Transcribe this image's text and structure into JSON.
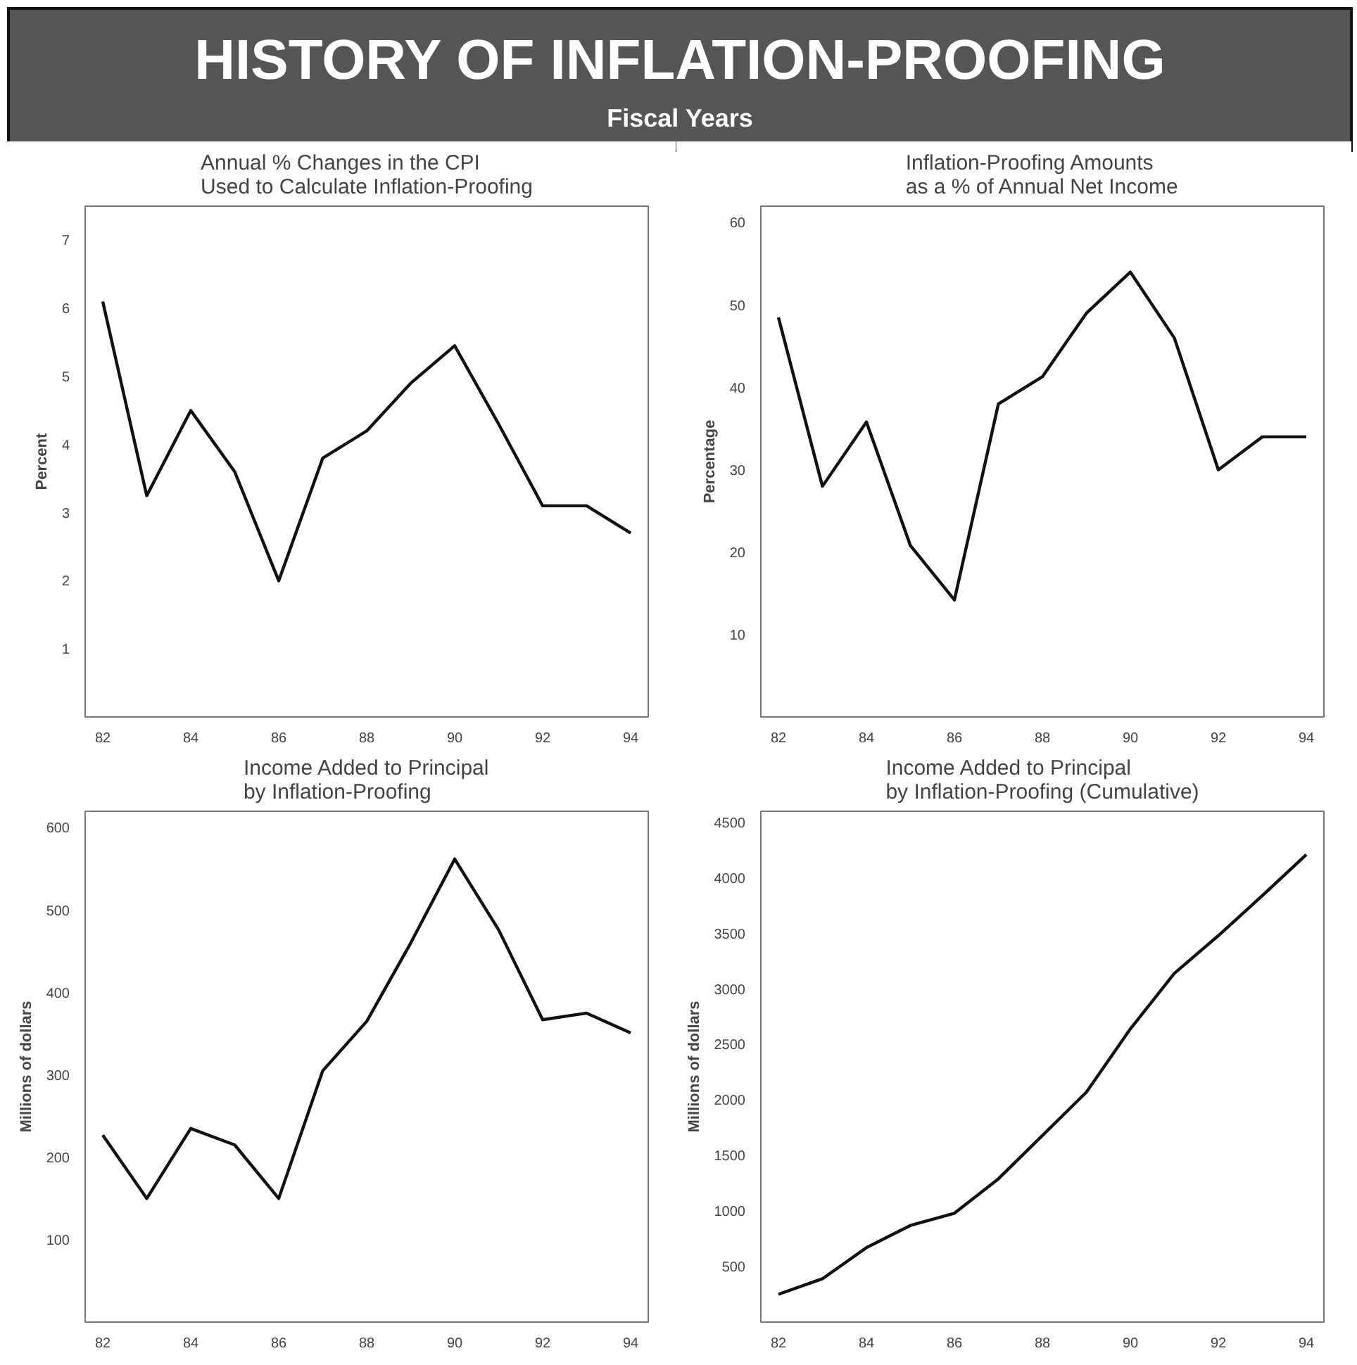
{
  "chart_data": [
    {
      "type": "other",
      "title": "HISTORY OF INFLATION-PROOFING",
      "subtitle": "Fiscal Years"
    },
    {
      "type": "line",
      "title": "Annual % Changes in the CPI\nUsed to Calculate Inflation-Proofing",
      "ylabel": "Percent",
      "x": [
        1982,
        1983,
        1984,
        1985,
        1986,
        1987,
        1988,
        1989,
        1990,
        1991,
        1992,
        1993,
        1994
      ],
      "series": [
        {
          "color": "#111111",
          "values": [
            6.1,
            3.25,
            4.5,
            3.6,
            2.0,
            3.8,
            4.2,
            4.9,
            5.45,
            4.3,
            3.1,
            3.1,
            2.7
          ]
        }
      ],
      "xlim": [
        1981.6,
        1994.4
      ],
      "xticks": [
        {
          "value": 1982,
          "label": "82"
        },
        {
          "value": 1984,
          "label": "84"
        },
        {
          "value": 1986,
          "label": "86"
        },
        {
          "value": 1988,
          "label": "88"
        },
        {
          "value": 1990,
          "label": "90"
        },
        {
          "value": 1992,
          "label": "92"
        },
        {
          "value": 1994,
          "label": "94"
        }
      ],
      "ylim": [
        0,
        7.5
      ],
      "yticks": [
        1,
        2,
        3,
        4,
        5,
        6,
        7
      ],
      "grid": false,
      "marker": "none",
      "line_style": "solid"
    },
    {
      "type": "line",
      "title": "Inflation-Proofing Amounts\nas a % of Annual Net Income",
      "ylabel": "Percentage",
      "x": [
        1982,
        1983,
        1984,
        1985,
        1986,
        1987,
        1988,
        1989,
        1990,
        1991,
        1992,
        1993,
        1994
      ],
      "series": [
        {
          "color": "#111111",
          "values": [
            48.5,
            28,
            35.8,
            20.8,
            14.2,
            38,
            41.3,
            49,
            54,
            46,
            30,
            34,
            34
          ]
        }
      ],
      "xlim": [
        1981.6,
        1994.4
      ],
      "xticks": [
        {
          "value": 1982,
          "label": "82"
        },
        {
          "value": 1984,
          "label": "84"
        },
        {
          "value": 1986,
          "label": "86"
        },
        {
          "value": 1988,
          "label": "88"
        },
        {
          "value": 1990,
          "label": "90"
        },
        {
          "value": 1992,
          "label": "92"
        },
        {
          "value": 1994,
          "label": "94"
        }
      ],
      "ylim": [
        0,
        62
      ],
      "yticks": [
        10,
        20,
        30,
        40,
        50,
        60
      ],
      "grid": false,
      "marker": "none",
      "line_style": "solid"
    },
    {
      "type": "line",
      "title": "Income Added to Principal\nby Inflation-Proofing",
      "ylabel": "Millions of dollars",
      "x": [
        1982,
        1983,
        1984,
        1985,
        1986,
        1987,
        1988,
        1989,
        1990,
        1991,
        1992,
        1993,
        1994
      ],
      "series": [
        {
          "color": "#111111",
          "values": [
            227,
            150,
            235,
            215,
            150,
            305,
            365,
            460,
            562,
            476,
            367,
            375,
            351
          ]
        }
      ],
      "xlim": [
        1981.6,
        1994.4
      ],
      "xticks": [
        {
          "value": 1982,
          "label": "82"
        },
        {
          "value": 1984,
          "label": "84"
        },
        {
          "value": 1986,
          "label": "86"
        },
        {
          "value": 1988,
          "label": "88"
        },
        {
          "value": 1990,
          "label": "90"
        },
        {
          "value": 1992,
          "label": "92"
        },
        {
          "value": 1994,
          "label": "94"
        }
      ],
      "ylim": [
        0,
        620
      ],
      "yticks": [
        100,
        200,
        300,
        400,
        500,
        600
      ],
      "grid": false,
      "marker": "none",
      "line_style": "solid"
    },
    {
      "type": "line",
      "title": "Income Added to Principal\nby Inflation-Proofing (Cumulative)",
      "ylabel": "Millions of dollars",
      "x": [
        1982,
        1983,
        1984,
        1985,
        1986,
        1987,
        1988,
        1989,
        1990,
        1991,
        1992,
        1993,
        1994
      ],
      "series": [
        {
          "color": "#111111",
          "values": [
            250,
            390,
            670,
            870,
            980,
            1290,
            1680,
            2070,
            2640,
            3140,
            3480,
            3840,
            4210
          ]
        }
      ],
      "xlim": [
        1981.6,
        1994.4
      ],
      "xticks": [
        {
          "value": 1982,
          "label": "82"
        },
        {
          "value": 1984,
          "label": "84"
        },
        {
          "value": 1986,
          "label": "86"
        },
        {
          "value": 1988,
          "label": "88"
        },
        {
          "value": 1990,
          "label": "90"
        },
        {
          "value": 1992,
          "label": "92"
        },
        {
          "value": 1994,
          "label": "94"
        }
      ],
      "ylim": [
        0,
        4600
      ],
      "yticks": [
        500,
        1000,
        1500,
        2000,
        2500,
        3000,
        3500,
        4000,
        4500
      ],
      "grid": false,
      "marker": "none",
      "line_style": "solid"
    }
  ]
}
